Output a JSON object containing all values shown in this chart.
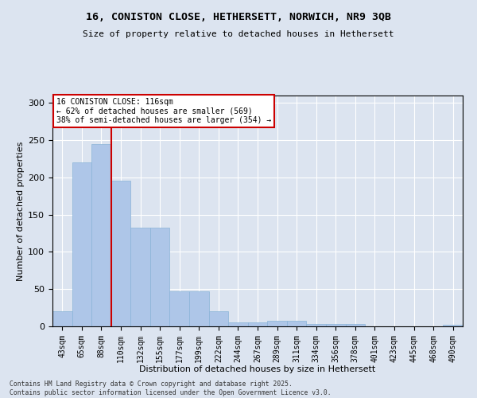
{
  "title_line1": "16, CONISTON CLOSE, HETHERSETT, NORWICH, NR9 3QB",
  "title_line2": "Size of property relative to detached houses in Hethersett",
  "xlabel": "Distribution of detached houses by size in Hethersett",
  "ylabel": "Number of detached properties",
  "categories": [
    "43sqm",
    "65sqm",
    "88sqm",
    "110sqm",
    "132sqm",
    "155sqm",
    "177sqm",
    "199sqm",
    "222sqm",
    "244sqm",
    "267sqm",
    "289sqm",
    "311sqm",
    "334sqm",
    "356sqm",
    "378sqm",
    "401sqm",
    "423sqm",
    "445sqm",
    "468sqm",
    "490sqm"
  ],
  "values": [
    20,
    220,
    245,
    196,
    133,
    133,
    47,
    47,
    20,
    5,
    5,
    7,
    7,
    3,
    3,
    3,
    0,
    0,
    0,
    0,
    2
  ],
  "bar_color": "#aec6e8",
  "bar_edge_color": "#8ab4d8",
  "vline_x": 3,
  "vline_color": "#cc0000",
  "annotation_title": "16 CONISTON CLOSE: 116sqm",
  "annotation_line2": "← 62% of detached houses are smaller (569)",
  "annotation_line3": "38% of semi-detached houses are larger (354) →",
  "annotation_box_color": "#ffffff",
  "annotation_edge_color": "#cc0000",
  "ylim": [
    0,
    310
  ],
  "yticks": [
    0,
    50,
    100,
    150,
    200,
    250,
    300
  ],
  "fig_bg_color": "#dce4f0",
  "background_color": "#dce4f0",
  "footnote_line1": "Contains HM Land Registry data © Crown copyright and database right 2025.",
  "footnote_line2": "Contains public sector information licensed under the Open Government Licence v3.0."
}
